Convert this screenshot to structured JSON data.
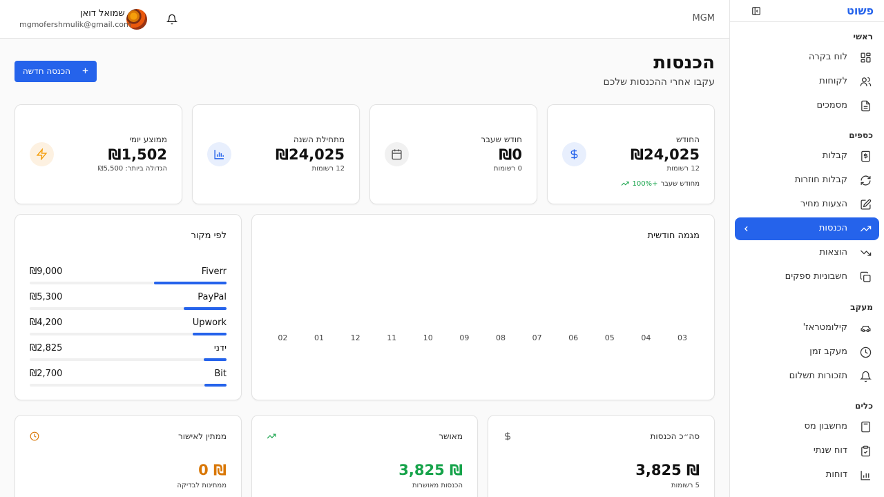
{
  "sidebar": {
    "brand": "פשוט",
    "sections": {
      "main": "ראשי",
      "money": "כספים",
      "tracking": "מעקב",
      "tools": "כלים"
    },
    "items": [
      {
        "label": "לוח בקרה",
        "icon": "dashboard-icon"
      },
      {
        "label": "לקוחות",
        "icon": "users-icon"
      },
      {
        "label": "מסמכים",
        "icon": "document-icon"
      },
      {
        "label": "קבלות",
        "icon": "receipt-icon"
      },
      {
        "label": "קבלות חוזרות",
        "icon": "refresh-icon"
      },
      {
        "label": "הצעות מחיר",
        "icon": "edit-document-icon"
      },
      {
        "label": "הכנסות",
        "icon": "trending-up-icon",
        "active": true
      },
      {
        "label": "הוצאות",
        "icon": "trending-down-icon"
      },
      {
        "label": "חשבוניות ספקים",
        "icon": "copy-icon"
      },
      {
        "label": "קילומטראז'",
        "icon": "car-icon"
      },
      {
        "label": "מעקב זמן",
        "icon": "clock-icon"
      },
      {
        "label": "תזכורות תשלום",
        "icon": "bell-icon"
      },
      {
        "label": "מחשבון מס",
        "icon": "calculator-icon"
      },
      {
        "label": "דוח שנתי",
        "icon": "clipboard-check-icon"
      },
      {
        "label": "דוחות",
        "icon": "bar-chart-icon"
      }
    ]
  },
  "topbar": {
    "org": "MGM",
    "user_name": "שמואל דואן",
    "user_email": "mgmofershmulik@gmail.com"
  },
  "page": {
    "title": "הכנסות",
    "subtitle": "עקבו אחרי ההכנסות שלכם",
    "new_button": "הכנסה חדשה"
  },
  "stats": [
    {
      "label": "החודש",
      "value": "₪24,025",
      "sub": "12 רשומות",
      "trend_pct": "+100%",
      "trend_text": "מחודש שעבר",
      "icon": "dollar-icon",
      "icon_color": "#2563eb",
      "icon_bg": "#e8effd"
    },
    {
      "label": "חודש שעבר",
      "value": "₪0",
      "sub": "0 רשומות",
      "icon": "calendar-icon",
      "icon_color": "#555555",
      "icon_bg": "#f1f1f1"
    },
    {
      "label": "מתחילת השנה",
      "value": "₪24,025",
      "sub": "12 רשומות",
      "icon": "bar-chart-icon",
      "icon_color": "#2563eb",
      "icon_bg": "#e8effd"
    },
    {
      "label": "ממוצע יומי",
      "value": "₪1,502",
      "sub": "הגדולה ביותר: ₪5,500",
      "icon": "lightning-icon",
      "icon_color": "#f59e0b",
      "icon_bg": "#fdf1e1"
    }
  ],
  "monthly": {
    "title": "מגמה חודשית",
    "months": [
      "03",
      "04",
      "05",
      "06",
      "07",
      "08",
      "09",
      "10",
      "11",
      "12",
      "01",
      "02"
    ]
  },
  "by_source": {
    "title": "לפי מקור",
    "items": [
      {
        "name": "Fiverr",
        "value": "₪9,000",
        "amount": 9000
      },
      {
        "name": "PayPal",
        "value": "₪5,300",
        "amount": 5300
      },
      {
        "name": "Upwork",
        "value": "₪4,200",
        "amount": 4200
      },
      {
        "name": "ידני",
        "value": "₪2,825",
        "amount": 2825
      },
      {
        "name": "Bit",
        "value": "₪2,700",
        "amount": 2700
      }
    ]
  },
  "summary": [
    {
      "label": "סה״כ הכנסות",
      "value": "₪ 3,825",
      "sub": "5 רשומות",
      "icon": "dollar-icon",
      "color": "#111111",
      "icon_color": "#555555"
    },
    {
      "label": "מאושר",
      "value": "₪ 3,825",
      "sub": "הכנסות מאושרות",
      "icon": "trending-up-icon",
      "color": "#16a34a",
      "icon_color": "#16a34a"
    },
    {
      "label": "ממתין לאישור",
      "value": "₪ 0",
      "sub": "ממתינות לבדיקה",
      "icon": "clock-icon",
      "color": "#d97706",
      "icon_color": "#d97706"
    }
  ],
  "colors": {
    "accent": "#2563eb",
    "success": "#16a34a",
    "warning": "#d97706"
  }
}
